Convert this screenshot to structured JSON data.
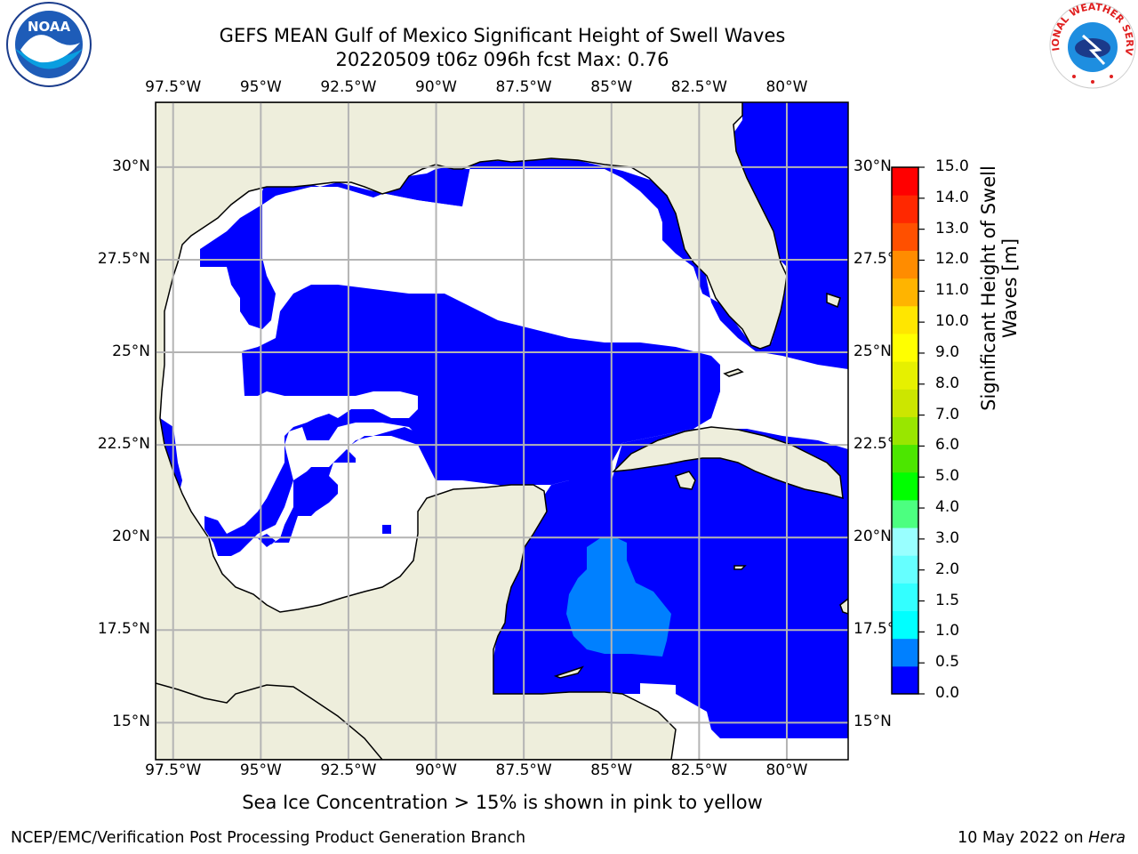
{
  "title": {
    "line1": "GEFS MEAN Gulf of Mexico Significant Height of Swell Waves",
    "line2": "20220509 t06z 096h fcst   Max: 0.76"
  },
  "map": {
    "lon_range": [
      -98.0,
      -78.25
    ],
    "lat_range": [
      14.0,
      31.75
    ],
    "lon_ticks": [
      -97.5,
      -95,
      -92.5,
      -90,
      -87.5,
      -85,
      -82.5,
      -80
    ],
    "lon_tick_labels": [
      "97.5°W",
      "95°W",
      "92.5°W",
      "90°W",
      "87.5°W",
      "85°W",
      "82.5°W",
      "80°W"
    ],
    "lat_ticks": [
      15,
      17.5,
      20,
      22.5,
      25,
      27.5,
      30
    ],
    "lat_tick_labels_left": [
      "15°N",
      "17.5°N",
      "20°N",
      "22.5°N",
      "25°N",
      "27.5°N",
      "30°N"
    ],
    "lat_tick_labels_right": [
      "15°N",
      "17.5°",
      "20°N",
      "22.5°",
      "25°N",
      "27.5°",
      "30°N"
    ],
    "grid": true,
    "colors": {
      "land": "#eeeedc",
      "swell_0_0.5": "#0000ff",
      "swell_0.5_1.0": "#0080ff",
      "no_data": "#ffffff",
      "grid": "#b4b4b4",
      "coast": "#000000"
    }
  },
  "colorbar": {
    "title": "Significant Height of Swell Waves [m]",
    "tick_labels": [
      "0.0",
      "0.5",
      "1.0",
      "1.5",
      "2.0",
      "3.0",
      "4.0",
      "5.0",
      "6.0",
      "7.0",
      "8.0",
      "9.0",
      "10.0",
      "11.0",
      "12.0",
      "13.0",
      "14.0",
      "15.0"
    ],
    "colors": [
      "#0000ff",
      "#0080ff",
      "#00ffff",
      "#33ffff",
      "#66ffff",
      "#99ffff",
      "#4cff80",
      "#00ff00",
      "#4ce600",
      "#99e600",
      "#cce600",
      "#e6f000",
      "#ffff00",
      "#ffe600",
      "#ffb400",
      "#ff8c00",
      "#ff5000",
      "#ff2800",
      "#ff0000"
    ]
  },
  "note": "Sea Ice Concentration > 15% is shown in pink to yellow",
  "footer": {
    "left": "NCEP/EMC/Verification Post Processing Product Generation Branch",
    "date": "10 May 2022 on ",
    "host": "Hera"
  },
  "logos": {
    "noaa_text": "NOAA",
    "nws_text": "NATIONAL WEATHER SERVICE"
  }
}
